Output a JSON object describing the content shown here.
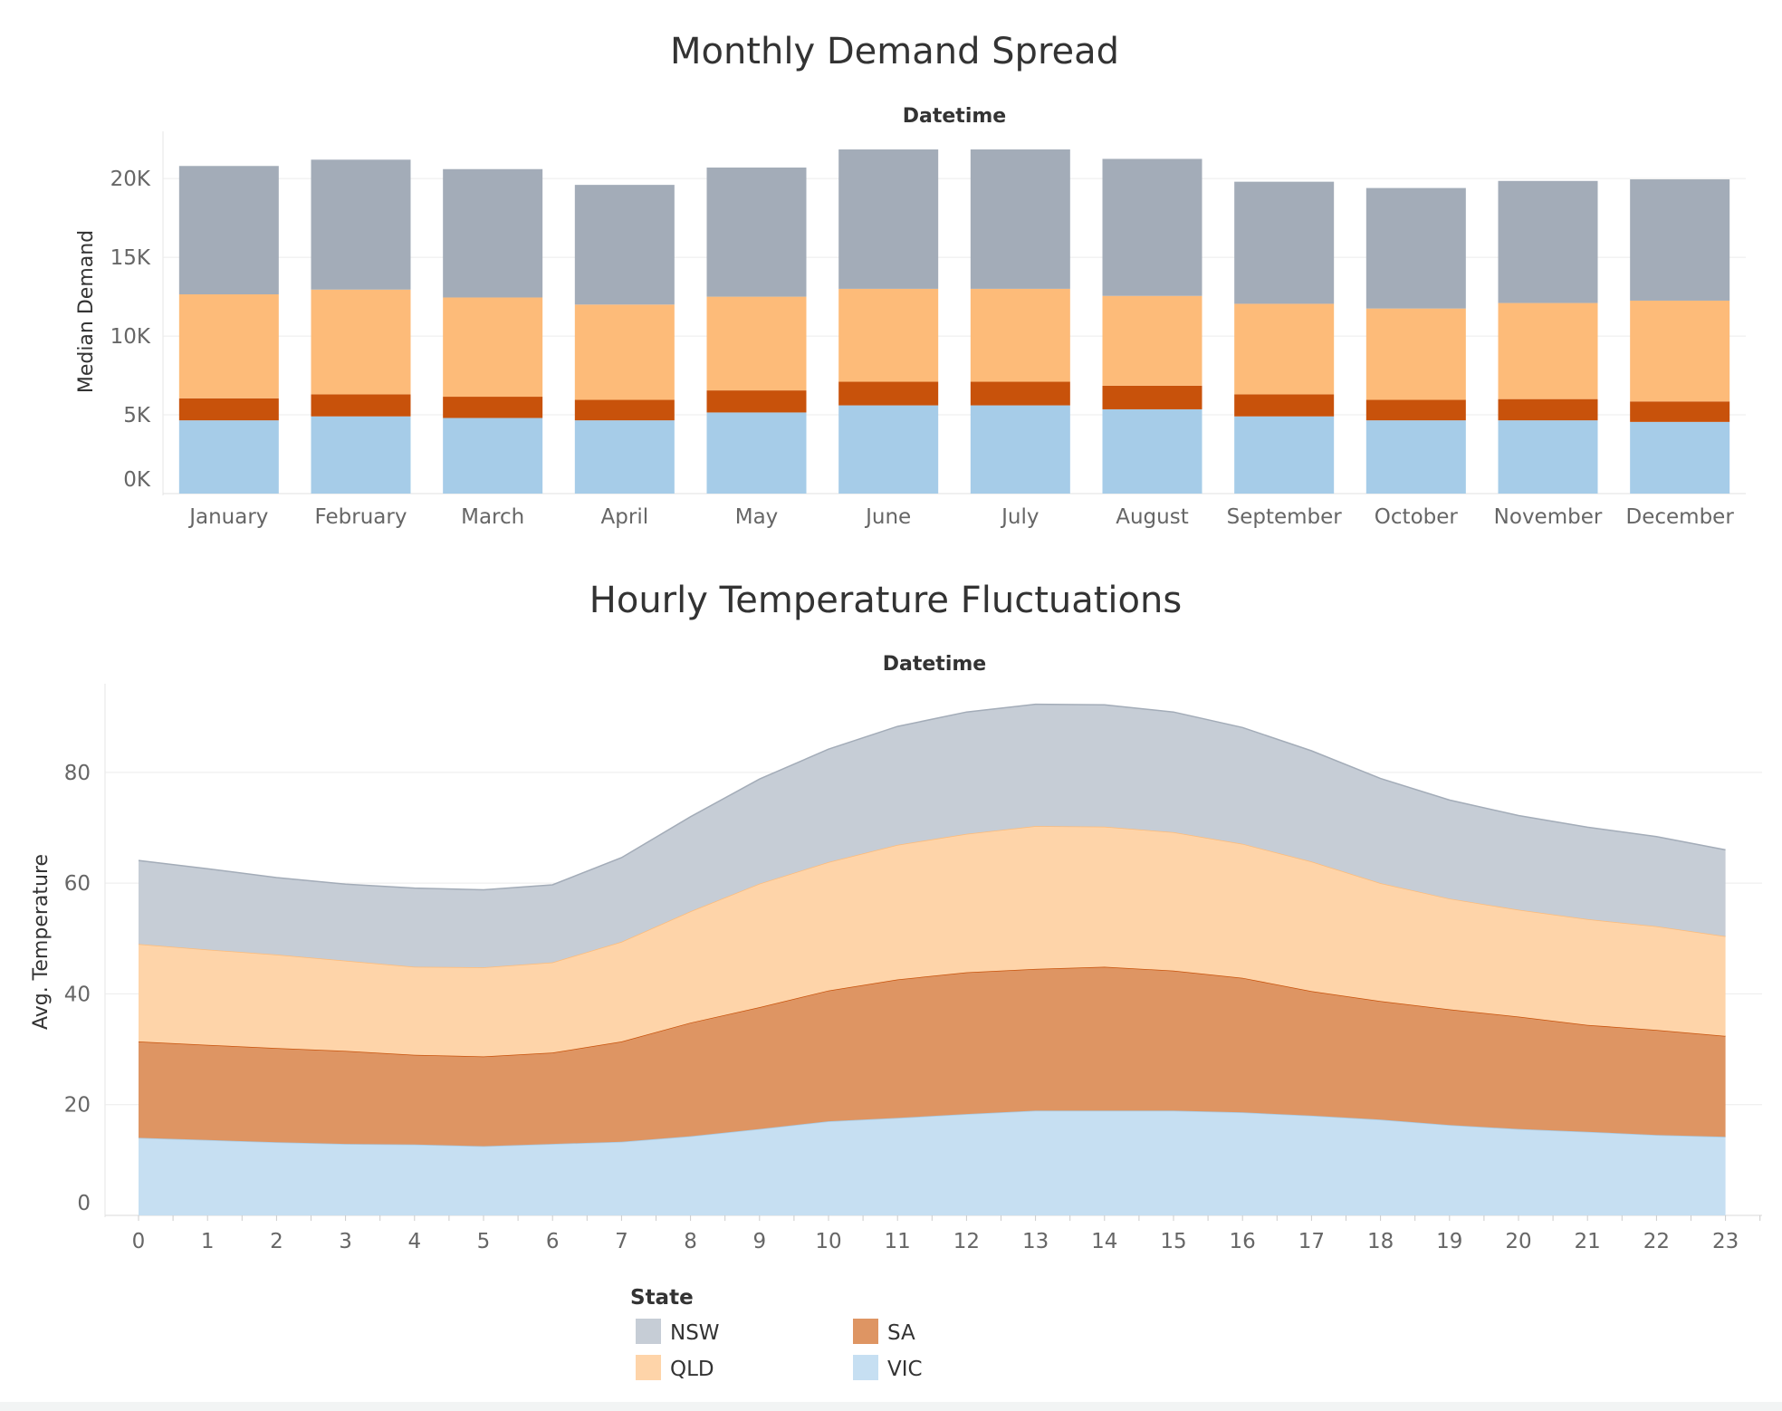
{
  "colors": {
    "NSW": "#a3acb8",
    "QLD": "#fdbb79",
    "SA": "#c8520b",
    "VIC": "#a6cce8",
    "area_NSW": "#c6cdd6",
    "area_QLD": "#fed4a9",
    "area_SA": "#de9563",
    "area_VIC": "#c6dff2"
  },
  "legend": {
    "title": "State",
    "items": [
      {
        "key": "NSW",
        "label": "NSW"
      },
      {
        "key": "SA",
        "label": "SA"
      },
      {
        "key": "QLD",
        "label": "QLD"
      },
      {
        "key": "VIC",
        "label": "VIC"
      }
    ]
  },
  "chart_data": [
    {
      "type": "bar",
      "stacked": true,
      "title": "Monthly Demand Spread",
      "column_header": "Datetime",
      "ylabel": "Median Demand",
      "xlabel": "",
      "ylim": [
        0,
        23000
      ],
      "yticks": [
        0,
        5000,
        10000,
        15000,
        20000
      ],
      "ytick_labels": [
        "0K",
        "5K",
        "10K",
        "15K",
        "20K"
      ],
      "grid": true,
      "categories": [
        "January",
        "February",
        "March",
        "April",
        "May",
        "June",
        "July",
        "August",
        "September",
        "October",
        "November",
        "December"
      ],
      "series": [
        {
          "name": "VIC",
          "values": [
            4650,
            4900,
            4800,
            4650,
            5150,
            5600,
            5600,
            5350,
            4900,
            4650,
            4650,
            4550
          ]
        },
        {
          "name": "SA",
          "values": [
            1400,
            1400,
            1350,
            1300,
            1400,
            1500,
            1500,
            1500,
            1400,
            1300,
            1350,
            1300
          ]
        },
        {
          "name": "QLD",
          "values": [
            6600,
            6650,
            6300,
            6050,
            5950,
            5900,
            5900,
            5700,
            5750,
            5800,
            6100,
            6400
          ]
        },
        {
          "name": "NSW",
          "values": [
            8150,
            8250,
            8150,
            7600,
            8200,
            8850,
            8850,
            8700,
            7750,
            7650,
            7750,
            7700
          ]
        }
      ]
    },
    {
      "type": "area",
      "stacked": true,
      "title": "Hourly Temperature Fluctuations",
      "column_header": "Datetime",
      "ylabel": "Avg. Temperature",
      "xlabel": "",
      "ylim": [
        0,
        96
      ],
      "yticks": [
        0,
        20,
        40,
        60,
        80
      ],
      "grid": true,
      "x": [
        0,
        1,
        2,
        3,
        4,
        5,
        6,
        7,
        8,
        9,
        10,
        11,
        12,
        13,
        14,
        15,
        16,
        17,
        18,
        19,
        20,
        21,
        22,
        23
      ],
      "series": [
        {
          "name": "VIC",
          "values": [
            14.0,
            13.6,
            13.2,
            12.9,
            12.8,
            12.5,
            12.9,
            13.3,
            14.3,
            15.6,
            17.0,
            17.6,
            18.3,
            18.9,
            18.9,
            18.9,
            18.6,
            18.0,
            17.3,
            16.3,
            15.6,
            15.1,
            14.5,
            14.2
          ]
        },
        {
          "name": "SA",
          "values": [
            17.4,
            17.2,
            17.0,
            16.8,
            16.2,
            16.2,
            16.5,
            18.1,
            20.5,
            22.0,
            23.6,
            25.0,
            25.6,
            25.6,
            26.0,
            25.3,
            24.3,
            22.5,
            21.4,
            20.9,
            20.3,
            19.3,
            19.0,
            18.2
          ]
        },
        {
          "name": "QLD",
          "values": [
            17.6,
            17.2,
            16.9,
            16.3,
            15.9,
            16.1,
            16.3,
            18.0,
            20.1,
            22.3,
            23.2,
            24.3,
            25.0,
            25.8,
            25.3,
            25.0,
            24.2,
            23.4,
            21.3,
            20.0,
            19.3,
            19.1,
            18.7,
            18.0
          ]
        },
        {
          "name": "NSW",
          "values": [
            15.1,
            14.6,
            13.9,
            13.8,
            14.2,
            14.0,
            14.0,
            15.2,
            17.1,
            18.9,
            20.4,
            21.4,
            22.0,
            22.0,
            22.0,
            21.7,
            21.0,
            20.0,
            18.9,
            17.8,
            17.0,
            16.6,
            16.2,
            15.6
          ]
        }
      ]
    }
  ]
}
